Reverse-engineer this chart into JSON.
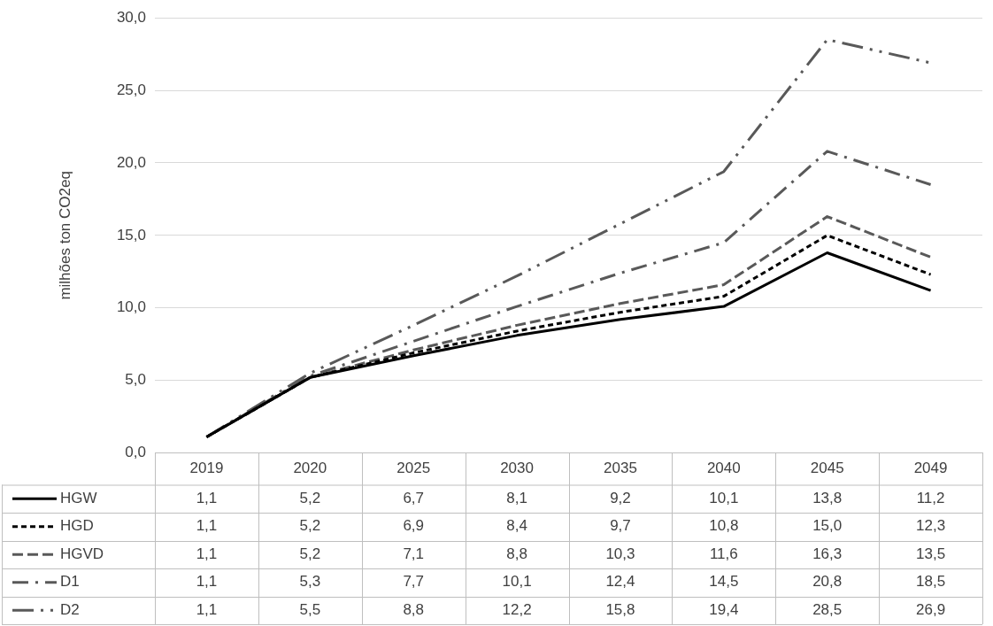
{
  "chart_data": {
    "type": "line",
    "ylabel": "milhões ton CO2eq",
    "categories": [
      "2019",
      "2020",
      "2025",
      "2030",
      "2035",
      "2040",
      "2045",
      "2049"
    ],
    "ylim": [
      0,
      30
    ],
    "yticks": [
      {
        "value": 0,
        "label": "0,0"
      },
      {
        "value": 5,
        "label": "5,0"
      },
      {
        "value": 10,
        "label": "10,0"
      },
      {
        "value": 15,
        "label": "15,0"
      },
      {
        "value": 20,
        "label": "20,0"
      },
      {
        "value": 25,
        "label": "25,0"
      },
      {
        "value": 30,
        "label": "30,0"
      }
    ],
    "grid": "y",
    "legend": "bottom",
    "marker": "none",
    "series": [
      {
        "name": "HGW",
        "color": "#000000",
        "line_style": "solid",
        "values": [
          1.1,
          5.2,
          6.7,
          8.1,
          9.2,
          10.1,
          13.8,
          11.2
        ],
        "value_labels": [
          "1,1",
          "5,2",
          "6,7",
          "8,1",
          "9,2",
          "10,1",
          "13,8",
          "11,2"
        ]
      },
      {
        "name": "HGD",
        "color": "#000000",
        "line_style": "dotted",
        "values": [
          1.1,
          5.2,
          6.9,
          8.4,
          9.7,
          10.8,
          15.0,
          12.3
        ],
        "value_labels": [
          "1,1",
          "5,2",
          "6,9",
          "8,4",
          "9,7",
          "10,8",
          "15,0",
          "12,3"
        ]
      },
      {
        "name": "HGVD",
        "color": "#595959",
        "line_style": "dashed",
        "values": [
          1.1,
          5.2,
          7.1,
          8.8,
          10.3,
          11.6,
          16.3,
          13.5
        ],
        "value_labels": [
          "1,1",
          "5,2",
          "7,1",
          "8,8",
          "10,3",
          "11,6",
          "16,3",
          "13,5"
        ]
      },
      {
        "name": "D1",
        "color": "#595959",
        "line_style": "dashed",
        "values": [
          1.1,
          5.3,
          7.7,
          10.1,
          12.4,
          14.5,
          20.8,
          18.5
        ],
        "value_labels": [
          "1,1",
          "5,3",
          "7,7",
          "10,1",
          "12,4",
          "14,5",
          "20,8",
          "18,5"
        ]
      },
      {
        "name": "D2",
        "color": "#595959",
        "line_style": "dashed",
        "values": [
          1.1,
          5.5,
          8.8,
          12.2,
          15.8,
          19.4,
          28.5,
          26.9
        ],
        "value_labels": [
          "1,1",
          "5,5",
          "8,8",
          "12,2",
          "15,8",
          "19,4",
          "28,5",
          "26,9"
        ]
      }
    ]
  }
}
